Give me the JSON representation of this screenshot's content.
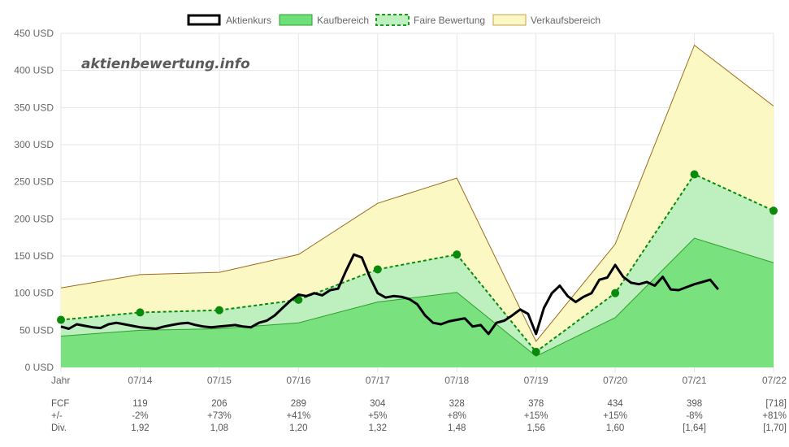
{
  "watermark": "aktienbewertung.info",
  "chart_data": {
    "type": "area",
    "x_labels": [
      "Jahr",
      "07/14",
      "07/15",
      "07/16",
      "07/17",
      "07/18",
      "07/19",
      "07/20",
      "07/21",
      "07/22"
    ],
    "y_ticks": [
      "0 USD",
      "50 USD",
      "100 USD",
      "150 USD",
      "200 USD",
      "250 USD",
      "300 USD",
      "350 USD",
      "400 USD",
      "450 USD"
    ],
    "ylim": [
      0,
      450
    ],
    "legend": [
      {
        "label": "Aktienkurs",
        "style": "line",
        "color": "#000000"
      },
      {
        "label": "Kaufbereich",
        "style": "area",
        "color": "#6ee07a"
      },
      {
        "label": "Faire Bewertung",
        "style": "dashed-area",
        "color": "#1d9b1d"
      },
      {
        "label": "Verkaufsbereich",
        "style": "area",
        "color": "#fbf8c4"
      }
    ],
    "series": [
      {
        "name": "Verkaufsbereich",
        "values": [
          107,
          125,
          128,
          152,
          221,
          255,
          35,
          166,
          434,
          352
        ],
        "color": "#fbf8c4",
        "stroke": "#9b6a1e"
      },
      {
        "name": "Faire Bewertung",
        "values": [
          64,
          74,
          77,
          91,
          132,
          152,
          21,
          100,
          260,
          211
        ],
        "color": "#bdefbf",
        "stroke": "#0a8a0a"
      },
      {
        "name": "Kaufbereich",
        "values": [
          42,
          50,
          52,
          60,
          88,
          101,
          15,
          67,
          174,
          141
        ],
        "color": "#79e27f",
        "stroke": "#2e9e2e"
      },
      {
        "name": "Aktienkurs",
        "x": [
          0.0,
          0.1,
          0.2,
          0.3,
          0.4,
          0.5,
          0.6,
          0.7,
          0.8,
          0.9,
          1.0,
          1.1,
          1.2,
          1.3,
          1.4,
          1.5,
          1.6,
          1.7,
          1.8,
          1.9,
          2.0,
          2.1,
          2.2,
          2.3,
          2.4,
          2.5,
          2.6,
          2.7,
          2.8,
          2.9,
          3.0,
          3.1,
          3.2,
          3.3,
          3.4,
          3.5,
          3.6,
          3.7,
          3.8,
          3.9,
          4.0,
          4.1,
          4.2,
          4.3,
          4.4,
          4.5,
          4.6,
          4.7,
          4.8,
          4.9,
          5.0,
          5.1,
          5.2,
          5.3,
          5.4,
          5.5,
          5.6,
          5.7,
          5.8,
          5.9,
          6.0,
          6.1,
          6.2,
          6.3,
          6.4,
          6.5,
          6.6,
          6.7,
          6.8,
          6.9,
          7.0,
          7.1,
          7.2,
          7.3,
          7.4,
          7.5,
          7.6,
          7.7,
          7.8,
          7.9,
          8.0,
          8.1,
          8.2,
          8.3
        ],
        "values": [
          55,
          52,
          58,
          56,
          54,
          53,
          58,
          60,
          58,
          56,
          54,
          53,
          52,
          55,
          57,
          59,
          60,
          57,
          55,
          54,
          55,
          56,
          57,
          55,
          54,
          60,
          63,
          70,
          80,
          90,
          98,
          96,
          100,
          97,
          104,
          106,
          130,
          152,
          148,
          122,
          100,
          94,
          96,
          95,
          92,
          85,
          70,
          60,
          58,
          62,
          64,
          66,
          55,
          57,
          45,
          60,
          63,
          70,
          78,
          72,
          45,
          80,
          100,
          110,
          96,
          88,
          95,
          100,
          118,
          121,
          138,
          122,
          114,
          112,
          115,
          110,
          122,
          105,
          104,
          108,
          112,
          115,
          118,
          105
        ]
      }
    ],
    "table": {
      "header": [
        "Jahr",
        "07/14",
        "07/15",
        "07/16",
        "07/17",
        "07/18",
        "07/19",
        "07/20",
        "07/21",
        "07/22"
      ],
      "rows": [
        {
          "label": "FCF",
          "values": [
            "119",
            "206",
            "289",
            "304",
            "328",
            "378",
            "434",
            "398",
            "[718]"
          ]
        },
        {
          "label": "+/-",
          "values": [
            "-2%",
            "+73%",
            "+41%",
            "+5%",
            "+8%",
            "+15%",
            "+15%",
            "-8%",
            "+81%"
          ]
        },
        {
          "label": "Div.",
          "values": [
            "1,92",
            "1,08",
            "1,20",
            "1,32",
            "1,48",
            "1,56",
            "1,60",
            "[1,64]",
            "[1,70]"
          ]
        }
      ]
    }
  }
}
